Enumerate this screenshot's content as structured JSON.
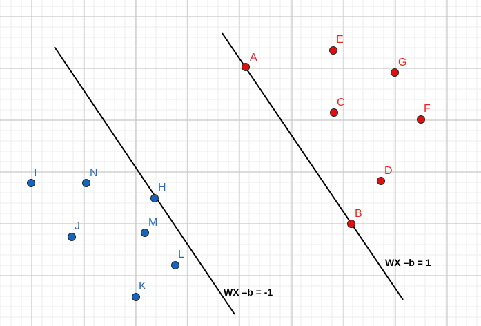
{
  "colors": {
    "minor_grid": "#ececec",
    "major_grid": "#c8c8c8",
    "line": "#000000",
    "class_pos_fill": "#e01010",
    "class_pos_label": "#e52828",
    "class_neg_fill": "#1565c0",
    "class_neg_label": "#2a6bc4",
    "point_stroke": "#222222"
  },
  "points_positive": [
    {
      "label": "A"
    },
    {
      "label": "B"
    },
    {
      "label": "C"
    },
    {
      "label": "D"
    },
    {
      "label": "E"
    },
    {
      "label": "F"
    },
    {
      "label": "G"
    }
  ],
  "points_negative": [
    {
      "label": "H"
    },
    {
      "label": "I"
    },
    {
      "label": "J"
    },
    {
      "label": "K"
    },
    {
      "label": "L"
    },
    {
      "label": "M"
    },
    {
      "label": "N"
    }
  ],
  "lines": [
    {
      "equation": "WX –b = -1"
    },
    {
      "equation": "WX –b = 1"
    }
  ]
}
